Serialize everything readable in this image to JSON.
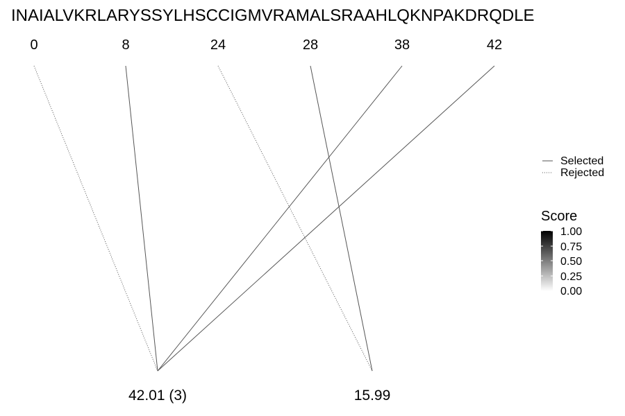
{
  "sequence": "INAIALVKRLARYSSYLHSCCIGMVRAMALSRAAHLQKNPAKDRQDLE",
  "positions": [
    "0",
    "8",
    "24",
    "28",
    "38",
    "42"
  ],
  "masses": [
    "42.01 (3)",
    "15.99"
  ],
  "connections": [
    {
      "from_position": 0,
      "to_mass": 0,
      "status": "rejected"
    },
    {
      "from_position": 1,
      "to_mass": 0,
      "status": "selected"
    },
    {
      "from_position": 2,
      "to_mass": 1,
      "status": "rejected"
    },
    {
      "from_position": 3,
      "to_mass": 1,
      "status": "selected"
    },
    {
      "from_position": 4,
      "to_mass": 0,
      "status": "selected"
    },
    {
      "from_position": 5,
      "to_mass": 0,
      "status": "selected"
    }
  ],
  "line_legend": {
    "selected_label": "Selected",
    "rejected_label": "Rejected"
  },
  "score_legend": {
    "title": "Score",
    "ticks": [
      "1.00",
      "0.75",
      "0.50",
      "0.25",
      "0.00"
    ],
    "color_high": "#000000",
    "color_low": "#ffffff"
  },
  "colors": {
    "line": "#555555"
  }
}
